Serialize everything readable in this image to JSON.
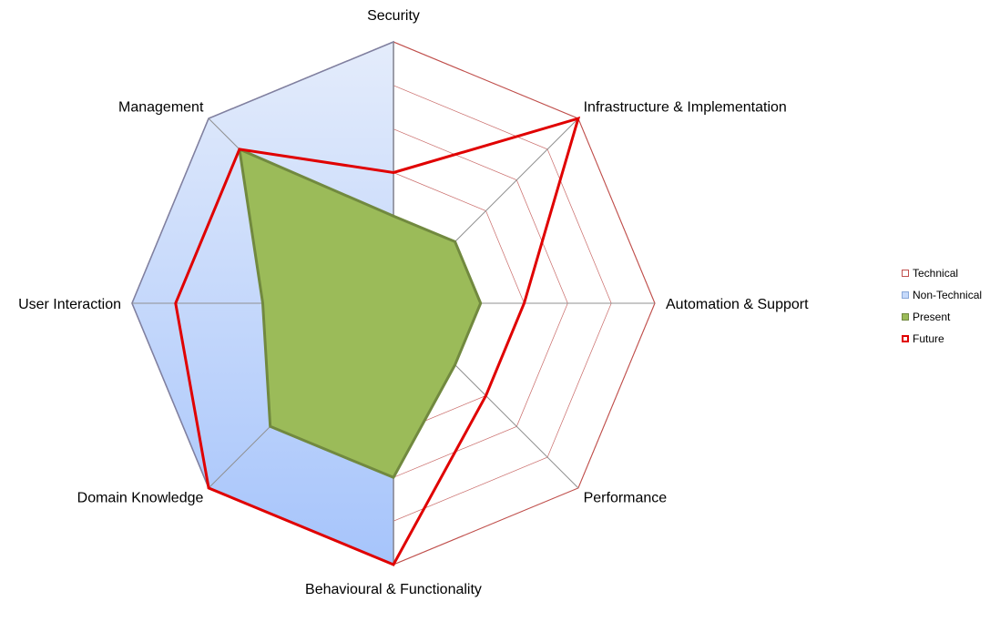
{
  "chart_data": {
    "type": "radar",
    "axes": [
      "Security",
      "Infrastructure & Implementation",
      "Automation & Support",
      "Performance",
      "Behavioural & Functionality",
      "Domain Knowledge",
      "User Interaction",
      "Management"
    ],
    "rmax": 6,
    "rings": 6,
    "gridlines": true,
    "legend_position": "right",
    "series": [
      {
        "name": "Technical",
        "values": [
          6,
          6,
          6,
          6,
          6,
          0,
          0,
          0
        ],
        "fill": "#ffffff",
        "stroke": "#c0504d",
        "style": "area-outline"
      },
      {
        "name": "Non-Technical",
        "values": [
          6,
          0,
          0,
          0,
          6,
          6,
          6,
          6
        ],
        "fill": "gradient",
        "stroke": "#8080a0",
        "style": "area-gradient"
      },
      {
        "name": "Present",
        "values": [
          2,
          2,
          2,
          2,
          4,
          4,
          3,
          5
        ],
        "fill": "#9bbb59",
        "stroke": "#71893f",
        "style": "area"
      },
      {
        "name": "Future",
        "values": [
          3,
          6,
          3,
          3,
          6,
          6,
          5,
          5
        ],
        "fill": "none",
        "stroke": "#e00000",
        "style": "line"
      }
    ]
  },
  "colors": {
    "grid_ring": "#c0504d",
    "spoke": "#909090",
    "gradient_top": "#e4ecfb",
    "gradient_bottom": "#a6c4fb"
  }
}
